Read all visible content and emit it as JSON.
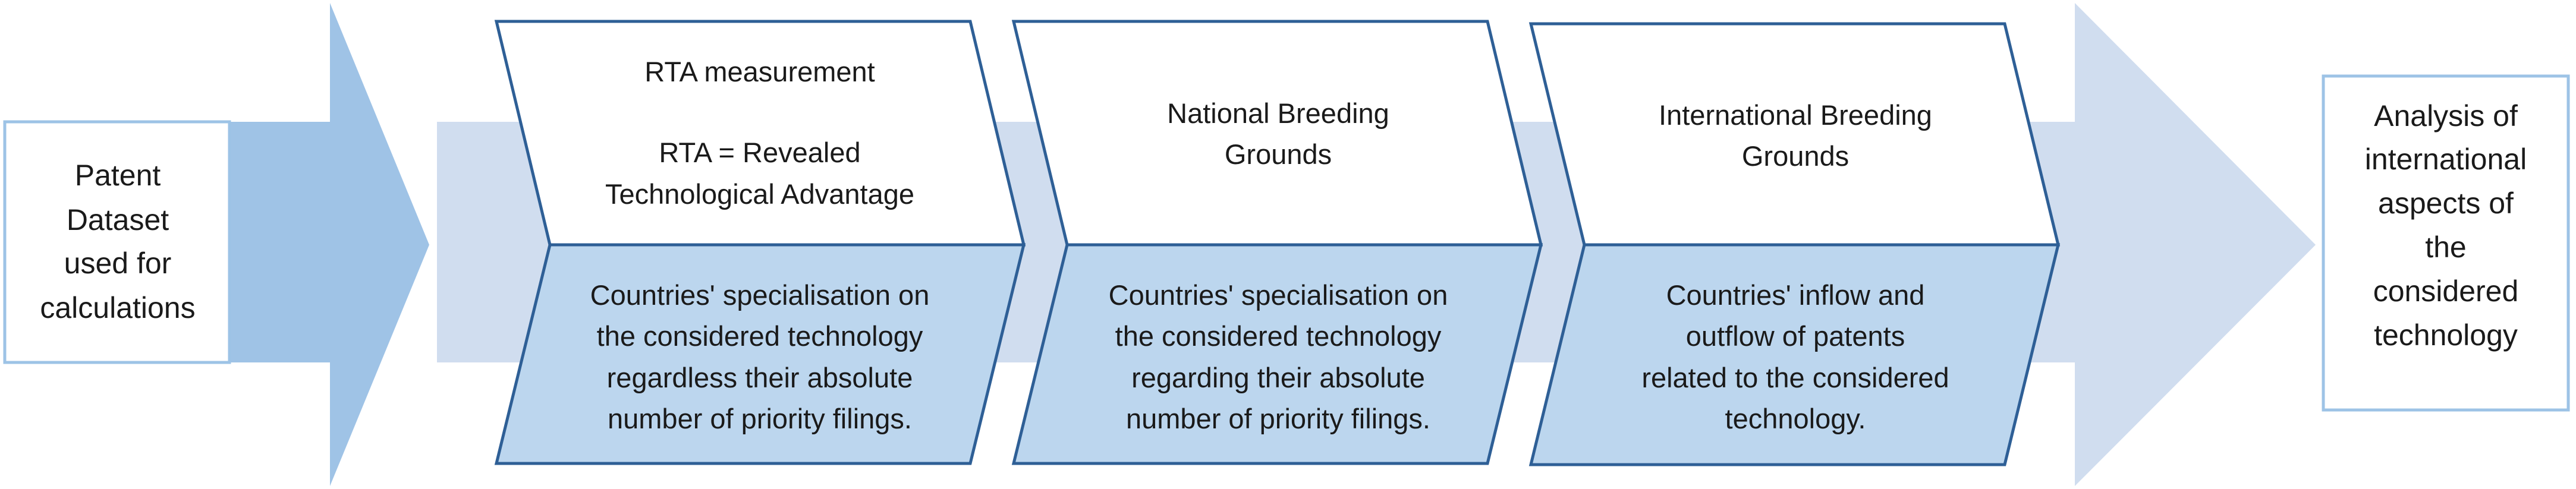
{
  "input_box": {
    "lines": [
      "Patent",
      "Dataset",
      "used for",
      "calculations"
    ]
  },
  "stages": [
    {
      "header_lines": [
        "RTA measurement",
        "",
        "RTA = Revealed",
        "Technological Advantage"
      ],
      "body_lines": [
        "Countries' specialisation on",
        "the considered technology",
        "regardless their absolute",
        "number of priority filings."
      ]
    },
    {
      "header_lines": [
        "National Breeding",
        "Grounds"
      ],
      "body_lines": [
        "Countries' specialisation on",
        "the considered technology",
        "regarding their absolute",
        "number of priority filings."
      ]
    },
    {
      "header_lines": [
        "International Breeding",
        "Grounds"
      ],
      "body_lines": [
        "Countries' inflow and",
        "outflow of patents",
        "related to the considered",
        "technology."
      ]
    }
  ],
  "output_box": {
    "lines": [
      "Analysis of",
      "international",
      "aspects of",
      "the",
      "considered",
      "technology"
    ]
  },
  "colors": {
    "dark_arrow": "#9fc3e6",
    "light_arrow": "#d0ddef",
    "stage_fill_bottom": "#bcd6ee",
    "stage_stroke": "#2e5f96",
    "box_stroke": "#9dc3e6",
    "text": "#1a1a1a"
  }
}
